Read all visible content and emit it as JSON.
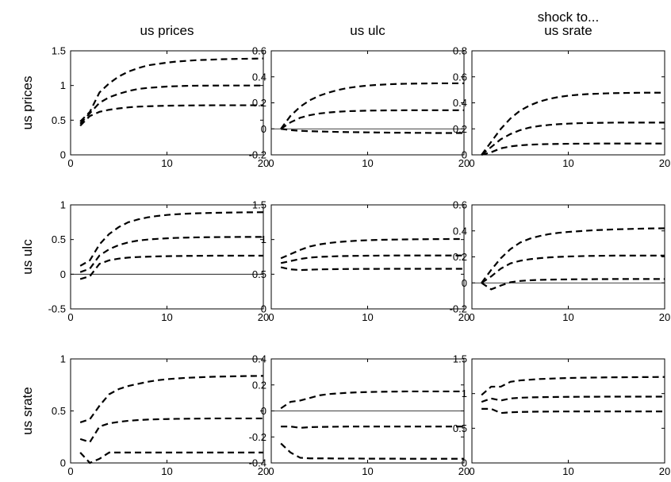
{
  "figure": {
    "column_titles": [
      "us prices",
      "us ulc",
      "shock to...\nus srate"
    ],
    "row_labels": [
      "us prices",
      "us ulc",
      "us srate"
    ]
  },
  "chart_data": [
    {
      "type": "line",
      "row": 0,
      "col": 0,
      "x": [
        1,
        2,
        3,
        4,
        5,
        6,
        7,
        8,
        9,
        10,
        11,
        12,
        13,
        14,
        15,
        16,
        17,
        18,
        19,
        20
      ],
      "xlim": [
        0,
        20
      ],
      "xticks": [
        0,
        10,
        20
      ],
      "ylim": [
        0,
        1.5
      ],
      "yticks": [
        0,
        0.5,
        1,
        1.5
      ],
      "ytick_labels": [
        "0",
        "0.5",
        "1",
        "1.5"
      ],
      "zero_line": false,
      "series": [
        {
          "style": "dashed",
          "values": [
            0.48,
            0.62,
            0.9,
            1.03,
            1.13,
            1.2,
            1.25,
            1.29,
            1.31,
            1.33,
            1.345,
            1.355,
            1.365,
            1.37,
            1.375,
            1.38,
            1.383,
            1.385,
            1.387,
            1.39
          ]
        },
        {
          "style": "dashed",
          "values": [
            0.45,
            0.6,
            0.75,
            0.83,
            0.88,
            0.92,
            0.95,
            0.965,
            0.975,
            0.985,
            0.99,
            0.995,
            0.997,
            0.998,
            0.999,
            1.0,
            1.0,
            1.0,
            1.0,
            1.0
          ]
        },
        {
          "style": "dashed",
          "values": [
            0.42,
            0.56,
            0.62,
            0.65,
            0.67,
            0.685,
            0.695,
            0.7,
            0.705,
            0.708,
            0.71,
            0.712,
            0.713,
            0.714,
            0.715,
            0.715,
            0.715,
            0.715,
            0.715,
            0.715
          ]
        }
      ]
    },
    {
      "type": "line",
      "row": 0,
      "col": 1,
      "x": [
        1,
        2,
        3,
        4,
        5,
        6,
        7,
        8,
        9,
        10,
        11,
        12,
        13,
        14,
        15,
        16,
        17,
        18,
        19,
        20
      ],
      "xlim": [
        0,
        20
      ],
      "xticks": [
        0,
        10,
        20
      ],
      "ylim": [
        -0.2,
        0.6
      ],
      "yticks": [
        -0.2,
        0,
        0.2,
        0.4,
        0.6
      ],
      "ytick_labels": [
        "-0.2",
        "0",
        "0.2",
        "0.4",
        "0.6"
      ],
      "zero_line": true,
      "series": [
        {
          "style": "dashed",
          "values": [
            0.0,
            0.1,
            0.17,
            0.22,
            0.255,
            0.28,
            0.3,
            0.315,
            0.325,
            0.333,
            0.338,
            0.342,
            0.345,
            0.347,
            0.348,
            0.349,
            0.35,
            0.35,
            0.35,
            0.35
          ]
        },
        {
          "style": "dashed",
          "values": [
            0.0,
            0.05,
            0.085,
            0.105,
            0.118,
            0.126,
            0.132,
            0.136,
            0.138,
            0.14,
            0.141,
            0.142,
            0.142,
            0.143,
            0.143,
            0.143,
            0.143,
            0.143,
            0.143,
            0.143
          ]
        },
        {
          "style": "dashed",
          "values": [
            0.0,
            -0.01,
            -0.015,
            -0.018,
            -0.02,
            -0.022,
            -0.024,
            -0.025,
            -0.026,
            -0.027,
            -0.028,
            -0.029,
            -0.03,
            -0.03,
            -0.031,
            -0.031,
            -0.032,
            -0.032,
            -0.032,
            -0.032
          ]
        }
      ]
    },
    {
      "type": "line",
      "row": 0,
      "col": 2,
      "x": [
        1,
        2,
        3,
        4,
        5,
        6,
        7,
        8,
        9,
        10,
        11,
        12,
        13,
        14,
        15,
        16,
        17,
        18,
        19,
        20
      ],
      "xlim": [
        0,
        20
      ],
      "xticks": [
        0,
        10,
        20
      ],
      "ylim": [
        0,
        0.8
      ],
      "yticks": [
        0,
        0.2,
        0.4,
        0.6,
        0.8
      ],
      "ytick_labels": [
        "0",
        "0.2",
        "0.4",
        "0.6",
        "0.8"
      ],
      "zero_line": false,
      "series": [
        {
          "style": "dashed",
          "values": [
            0.0,
            0.1,
            0.2,
            0.28,
            0.34,
            0.38,
            0.41,
            0.43,
            0.445,
            0.455,
            0.462,
            0.467,
            0.47,
            0.473,
            0.475,
            0.476,
            0.477,
            0.478,
            0.478,
            0.478
          ]
        },
        {
          "style": "dashed",
          "values": [
            0.0,
            0.06,
            0.12,
            0.16,
            0.19,
            0.21,
            0.222,
            0.23,
            0.236,
            0.24,
            0.243,
            0.245,
            0.246,
            0.247,
            0.248,
            0.248,
            0.248,
            0.248,
            0.248,
            0.248
          ]
        },
        {
          "style": "dashed",
          "values": [
            0.0,
            0.02,
            0.05,
            0.065,
            0.073,
            0.078,
            0.081,
            0.083,
            0.084,
            0.085,
            0.086,
            0.086,
            0.087,
            0.087,
            0.087,
            0.087,
            0.087,
            0.087,
            0.087,
            0.087
          ]
        }
      ]
    },
    {
      "type": "line",
      "row": 1,
      "col": 0,
      "x": [
        1,
        2,
        3,
        4,
        5,
        6,
        7,
        8,
        9,
        10,
        11,
        12,
        13,
        14,
        15,
        16,
        17,
        18,
        19,
        20
      ],
      "xlim": [
        0,
        20
      ],
      "xticks": [
        0,
        10,
        20
      ],
      "ylim": [
        -0.5,
        1
      ],
      "yticks": [
        -0.5,
        0,
        0.5,
        1
      ],
      "ytick_labels": [
        "-0.5",
        "0",
        "0.5",
        "1"
      ],
      "zero_line": true,
      "series": [
        {
          "style": "dashed",
          "values": [
            0.12,
            0.2,
            0.43,
            0.58,
            0.68,
            0.75,
            0.79,
            0.82,
            0.84,
            0.855,
            0.865,
            0.873,
            0.878,
            0.882,
            0.885,
            0.888,
            0.89,
            0.892,
            0.893,
            0.894
          ]
        },
        {
          "style": "dashed",
          "values": [
            0.03,
            0.08,
            0.27,
            0.36,
            0.42,
            0.46,
            0.485,
            0.5,
            0.51,
            0.518,
            0.524,
            0.528,
            0.531,
            0.533,
            0.535,
            0.536,
            0.537,
            0.538,
            0.538,
            0.538
          ]
        },
        {
          "style": "dashed",
          "values": [
            -0.07,
            -0.03,
            0.15,
            0.2,
            0.225,
            0.24,
            0.248,
            0.253,
            0.257,
            0.26,
            0.262,
            0.264,
            0.265,
            0.266,
            0.267,
            0.267,
            0.267,
            0.267,
            0.267,
            0.267
          ]
        }
      ]
    },
    {
      "type": "line",
      "row": 1,
      "col": 1,
      "x": [
        1,
        2,
        3,
        4,
        5,
        6,
        7,
        8,
        9,
        10,
        11,
        12,
        13,
        14,
        15,
        16,
        17,
        18,
        19,
        20
      ],
      "xlim": [
        0,
        20
      ],
      "xticks": [
        0,
        10,
        20
      ],
      "ylim": [
        0,
        1.5
      ],
      "yticks": [
        0,
        0.5,
        1,
        1.5
      ],
      "ytick_labels": [
        "0",
        "0.5",
        "1",
        "1.5"
      ],
      "zero_line": false,
      "series": [
        {
          "style": "dashed",
          "values": [
            0.73,
            0.79,
            0.85,
            0.9,
            0.93,
            0.95,
            0.965,
            0.975,
            0.985,
            0.99,
            0.995,
            0.998,
            1.0,
            1.002,
            1.004,
            1.005,
            1.006,
            1.007,
            1.008,
            1.008
          ]
        },
        {
          "style": "dashed",
          "values": [
            0.66,
            0.69,
            0.72,
            0.74,
            0.75,
            0.755,
            0.76,
            0.763,
            0.765,
            0.767,
            0.768,
            0.769,
            0.77,
            0.77,
            0.77,
            0.77,
            0.77,
            0.77,
            0.77,
            0.77
          ]
        },
        {
          "style": "dashed",
          "values": [
            0.6,
            0.57,
            0.56,
            0.565,
            0.57,
            0.572,
            0.574,
            0.575,
            0.576,
            0.577,
            0.577,
            0.578,
            0.578,
            0.578,
            0.578,
            0.578,
            0.578,
            0.578,
            0.578,
            0.578
          ]
        }
      ]
    },
    {
      "type": "line",
      "row": 1,
      "col": 2,
      "x": [
        1,
        2,
        3,
        4,
        5,
        6,
        7,
        8,
        9,
        10,
        11,
        12,
        13,
        14,
        15,
        16,
        17,
        18,
        19,
        20
      ],
      "xlim": [
        0,
        20
      ],
      "xticks": [
        0,
        10,
        20
      ],
      "ylim": [
        -0.2,
        0.6
      ],
      "yticks": [
        -0.2,
        0,
        0.2,
        0.4,
        0.6
      ],
      "ytick_labels": [
        "-0.2",
        "0",
        "0.2",
        "0.4",
        "0.6"
      ],
      "zero_line": true,
      "series": [
        {
          "style": "dashed",
          "values": [
            0.0,
            0.1,
            0.19,
            0.26,
            0.31,
            0.34,
            0.36,
            0.375,
            0.385,
            0.392,
            0.397,
            0.402,
            0.406,
            0.409,
            0.412,
            0.414,
            0.416,
            0.418,
            0.419,
            0.42
          ]
        },
        {
          "style": "dashed",
          "values": [
            0.0,
            0.05,
            0.11,
            0.15,
            0.17,
            0.182,
            0.19,
            0.196,
            0.2,
            0.203,
            0.205,
            0.207,
            0.208,
            0.209,
            0.21,
            0.21,
            0.21,
            0.21,
            0.21,
            0.21
          ]
        },
        {
          "style": "dashed",
          "values": [
            0.0,
            -0.05,
            -0.02,
            0.005,
            0.015,
            0.02,
            0.023,
            0.025,
            0.026,
            0.027,
            0.028,
            0.028,
            0.029,
            0.029,
            0.03,
            0.03,
            0.03,
            0.03,
            0.03,
            0.03
          ]
        }
      ]
    },
    {
      "type": "line",
      "row": 2,
      "col": 0,
      "x": [
        1,
        2,
        3,
        4,
        5,
        6,
        7,
        8,
        9,
        10,
        11,
        12,
        13,
        14,
        15,
        16,
        17,
        18,
        19,
        20
      ],
      "xlim": [
        0,
        20
      ],
      "xticks": [
        0,
        10,
        20
      ],
      "ylim": [
        0,
        1
      ],
      "yticks": [
        0,
        0.5,
        1
      ],
      "ytick_labels": [
        "0",
        "0.5",
        "1"
      ],
      "zero_line": false,
      "series": [
        {
          "style": "dashed",
          "values": [
            0.39,
            0.42,
            0.55,
            0.66,
            0.71,
            0.74,
            0.76,
            0.78,
            0.795,
            0.805,
            0.812,
            0.818,
            0.822,
            0.826,
            0.829,
            0.831,
            0.833,
            0.835,
            0.836,
            0.837
          ]
        },
        {
          "style": "dashed",
          "values": [
            0.23,
            0.2,
            0.35,
            0.38,
            0.395,
            0.405,
            0.412,
            0.417,
            0.42,
            0.422,
            0.424,
            0.425,
            0.426,
            0.427,
            0.428,
            0.428,
            0.428,
            0.428,
            0.428,
            0.428
          ]
        },
        {
          "style": "dashed",
          "values": [
            0.1,
            0.0,
            0.04,
            0.1,
            0.1,
            0.1,
            0.1,
            0.1,
            0.1,
            0.1,
            0.1,
            0.1,
            0.1,
            0.1,
            0.1,
            0.1,
            0.1,
            0.1,
            0.1,
            0.1
          ]
        }
      ]
    },
    {
      "type": "line",
      "row": 2,
      "col": 1,
      "x": [
        1,
        2,
        3,
        4,
        5,
        6,
        7,
        8,
        9,
        10,
        11,
        12,
        13,
        14,
        15,
        16,
        17,
        18,
        19,
        20
      ],
      "xlim": [
        0,
        20
      ],
      "xticks": [
        0,
        10,
        20
      ],
      "ylim": [
        -0.4,
        0.4
      ],
      "yticks": [
        -0.4,
        -0.2,
        0,
        0.2,
        0.4
      ],
      "ytick_labels": [
        "-0.4",
        "-0.2",
        "0",
        "0.2",
        "0.4"
      ],
      "zero_line": true,
      "series": [
        {
          "style": "dashed",
          "values": [
            0.02,
            0.07,
            0.08,
            0.1,
            0.12,
            0.13,
            0.135,
            0.14,
            0.143,
            0.145,
            0.147,
            0.148,
            0.149,
            0.15,
            0.15,
            0.15,
            0.15,
            0.15,
            0.15,
            0.15
          ]
        },
        {
          "style": "dashed",
          "values": [
            -0.12,
            -0.12,
            -0.13,
            -0.125,
            -0.123,
            -0.122,
            -0.121,
            -0.12,
            -0.12,
            -0.12,
            -0.12,
            -0.12,
            -0.12,
            -0.12,
            -0.12,
            -0.12,
            -0.12,
            -0.12,
            -0.12,
            -0.12
          ]
        },
        {
          "style": "dashed",
          "values": [
            -0.25,
            -0.32,
            -0.36,
            -0.365,
            -0.365,
            -0.365,
            -0.366,
            -0.366,
            -0.366,
            -0.367,
            -0.367,
            -0.367,
            -0.367,
            -0.368,
            -0.368,
            -0.368,
            -0.368,
            -0.368,
            -0.368,
            -0.368
          ]
        }
      ]
    },
    {
      "type": "line",
      "row": 2,
      "col": 2,
      "x": [
        1,
        2,
        3,
        4,
        5,
        6,
        7,
        8,
        9,
        10,
        11,
        12,
        13,
        14,
        15,
        16,
        17,
        18,
        19,
        20
      ],
      "xlim": [
        0,
        20
      ],
      "xticks": [
        0,
        10,
        20
      ],
      "ylim": [
        0,
        1.5
      ],
      "yticks": [
        0,
        0.5,
        1,
        1.5
      ],
      "ytick_labels": [
        "0",
        "0.5",
        "1",
        "1.5"
      ],
      "zero_line": false,
      "series": [
        {
          "style": "dashed",
          "values": [
            0.98,
            1.1,
            1.1,
            1.17,
            1.19,
            1.2,
            1.21,
            1.215,
            1.22,
            1.225,
            1.228,
            1.23,
            1.232,
            1.234,
            1.235,
            1.236,
            1.237,
            1.238,
            1.239,
            1.24
          ]
        },
        {
          "style": "dashed",
          "values": [
            0.88,
            0.93,
            0.9,
            0.93,
            0.94,
            0.945,
            0.948,
            0.95,
            0.952,
            0.953,
            0.954,
            0.955,
            0.955,
            0.956,
            0.956,
            0.956,
            0.956,
            0.956,
            0.956,
            0.956
          ]
        },
        {
          "style": "dashed",
          "values": [
            0.78,
            0.78,
            0.72,
            0.73,
            0.735,
            0.738,
            0.74,
            0.741,
            0.742,
            0.742,
            0.743,
            0.743,
            0.743,
            0.743,
            0.743,
            0.743,
            0.743,
            0.743,
            0.743,
            0.743
          ]
        }
      ]
    }
  ]
}
